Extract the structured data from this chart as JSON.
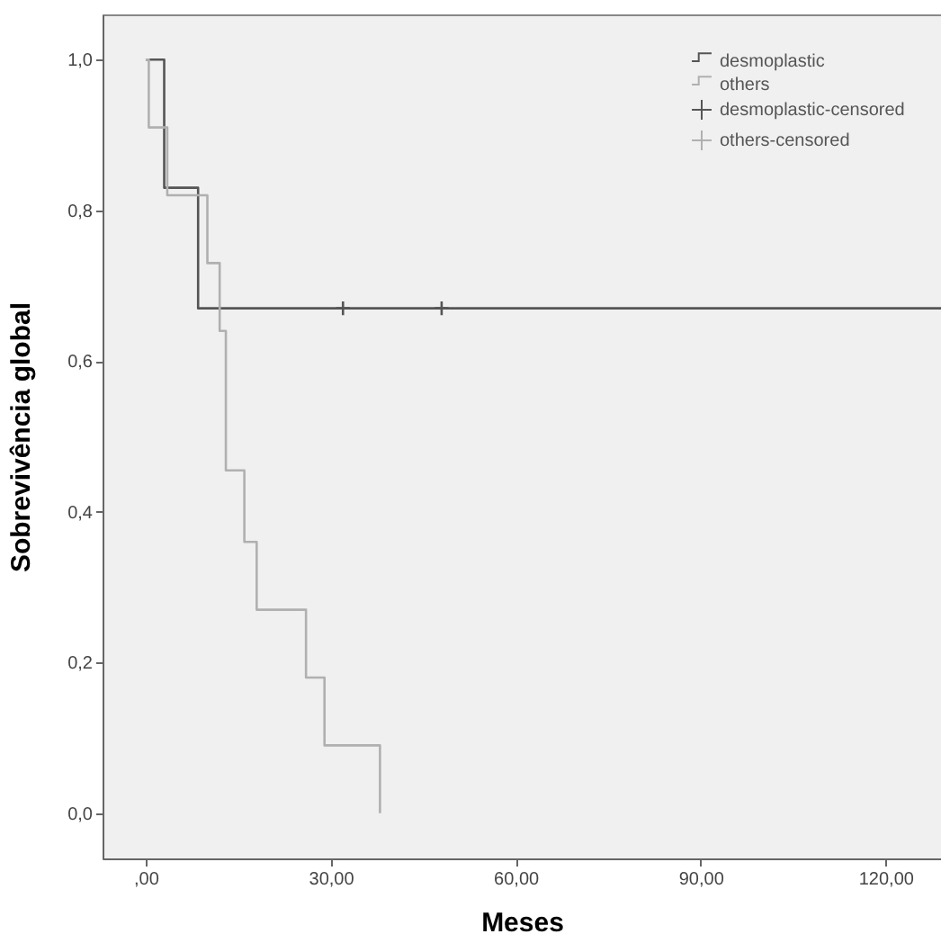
{
  "chart_data": {
    "type": "step",
    "xlabel": "Meses",
    "ylabel": "Sobrevivência global",
    "xlim": [
      -7,
      129
    ],
    "ylim": [
      -0.06,
      1.06
    ],
    "xticks": [
      {
        "value": 0,
        "label": ",00"
      },
      {
        "value": 30,
        "label": "30,00"
      },
      {
        "value": 60,
        "label": "60,00"
      },
      {
        "value": 90,
        "label": "90,00"
      },
      {
        "value": 120,
        "label": "120,00"
      }
    ],
    "yticks": [
      {
        "value": 0,
        "label": "0,0"
      },
      {
        "value": 0.2,
        "label": "0,2"
      },
      {
        "value": 0.4,
        "label": "0,4"
      },
      {
        "value": 0.6,
        "label": "0,6"
      },
      {
        "value": 0.8,
        "label": "0,8"
      },
      {
        "value": 1.0,
        "label": "1,0"
      }
    ],
    "grid": false,
    "legend": "top right",
    "series": [
      {
        "name": "desmoplastic",
        "marker": "none",
        "color": "#555555",
        "x": [
          0,
          3,
          8.5,
          129
        ],
        "values": [
          1.0,
          0.83,
          0.67,
          0.67
        ]
      },
      {
        "name": "others",
        "marker": "none",
        "color": "#b0b0b0",
        "x": [
          0,
          0.5,
          3.5,
          10,
          12,
          13,
          16,
          18,
          26,
          29,
          38
        ],
        "values": [
          1.0,
          0.91,
          0.82,
          0.73,
          0.64,
          0.455,
          0.36,
          0.27,
          0.18,
          0.09,
          0.0
        ]
      },
      {
        "name": "desmoplastic-censored",
        "type": "scatter",
        "marker": "cross",
        "color": "#555555",
        "x": [
          32,
          48
        ],
        "values": [
          0.67,
          0.67
        ]
      },
      {
        "name": "others-censored",
        "type": "scatter",
        "marker": "cross",
        "color": "#b0b0b0"
      }
    ]
  }
}
